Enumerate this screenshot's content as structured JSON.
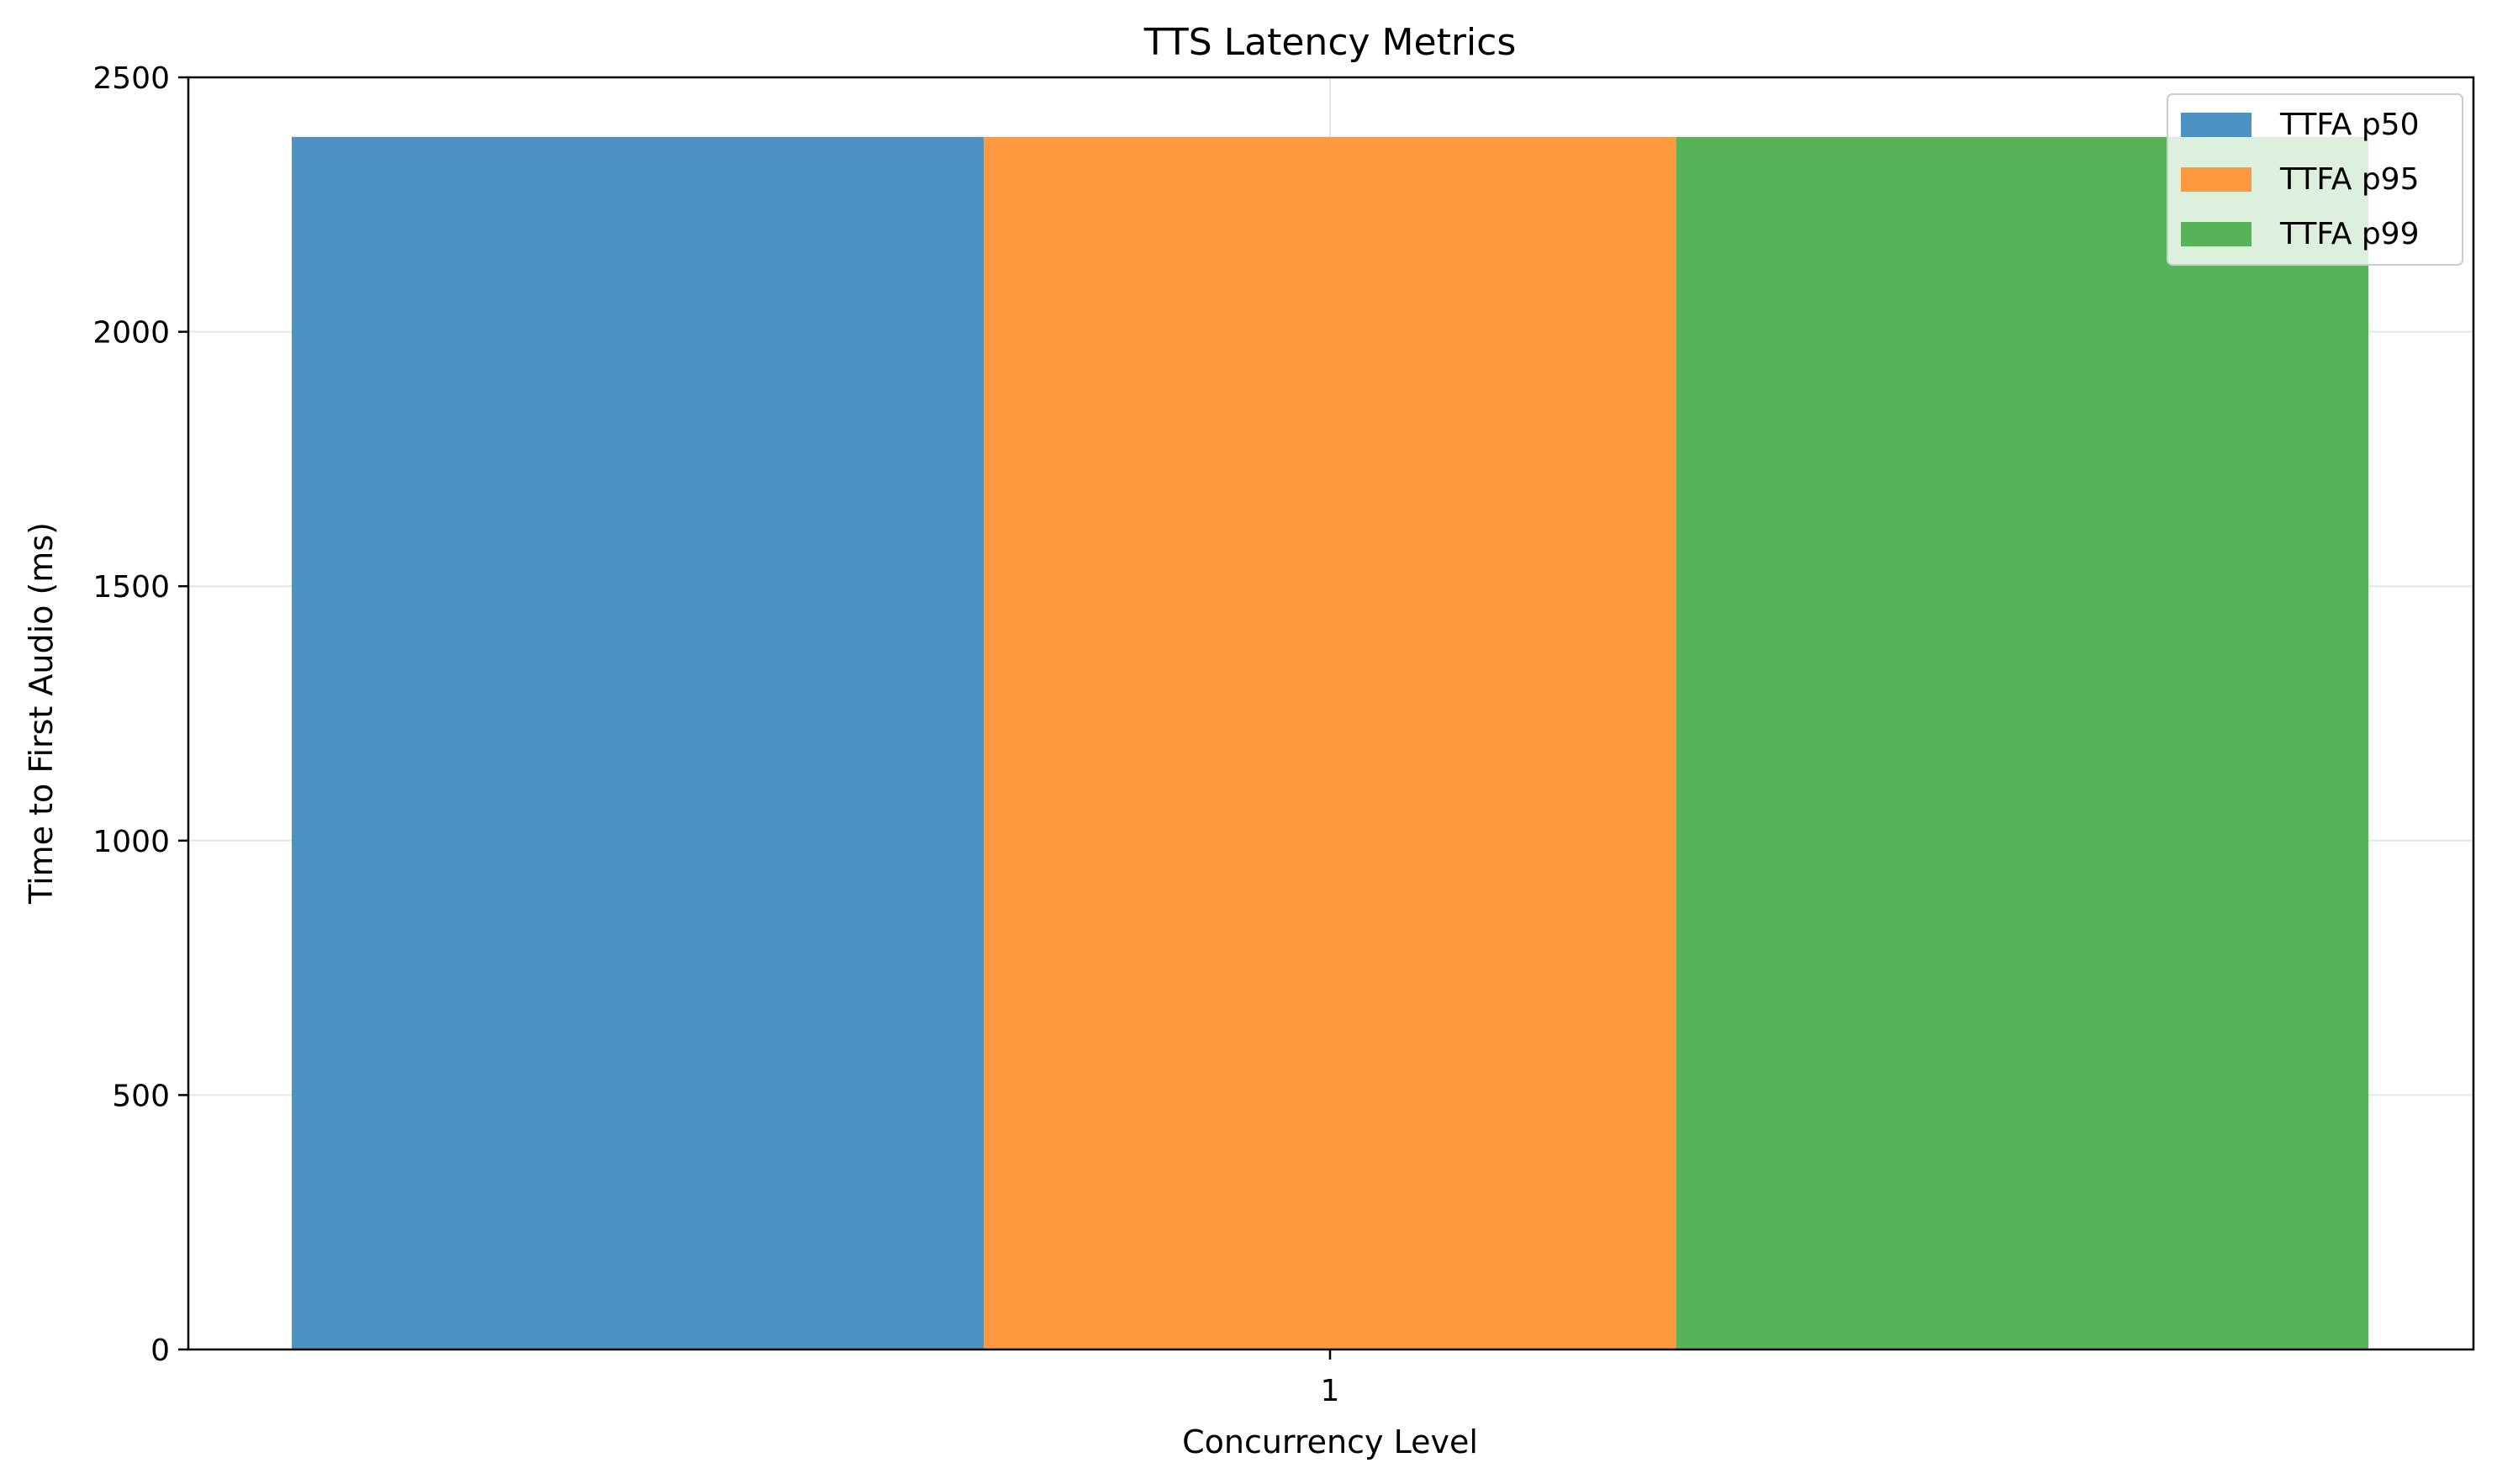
{
  "chart_data": {
    "type": "bar",
    "title": "TTS Latency Metrics",
    "xlabel": "Concurrency Level",
    "ylabel": "Time to First Audio (ms)",
    "categories": [
      "1"
    ],
    "ylim": [
      0,
      2500
    ],
    "yticks": [
      "0",
      "500",
      "1000",
      "1500",
      "2000",
      "2500"
    ],
    "grid": true,
    "legend_position": "top-right",
    "series": [
      {
        "name": "TTFA p50",
        "values": [
          2383
        ],
        "color": "#4c92c3"
      },
      {
        "name": "TTFA p95",
        "values": [
          2383
        ],
        "color": "#ff993f"
      },
      {
        "name": "TTFA p99",
        "values": [
          2383
        ],
        "color": "#56b357"
      }
    ]
  }
}
